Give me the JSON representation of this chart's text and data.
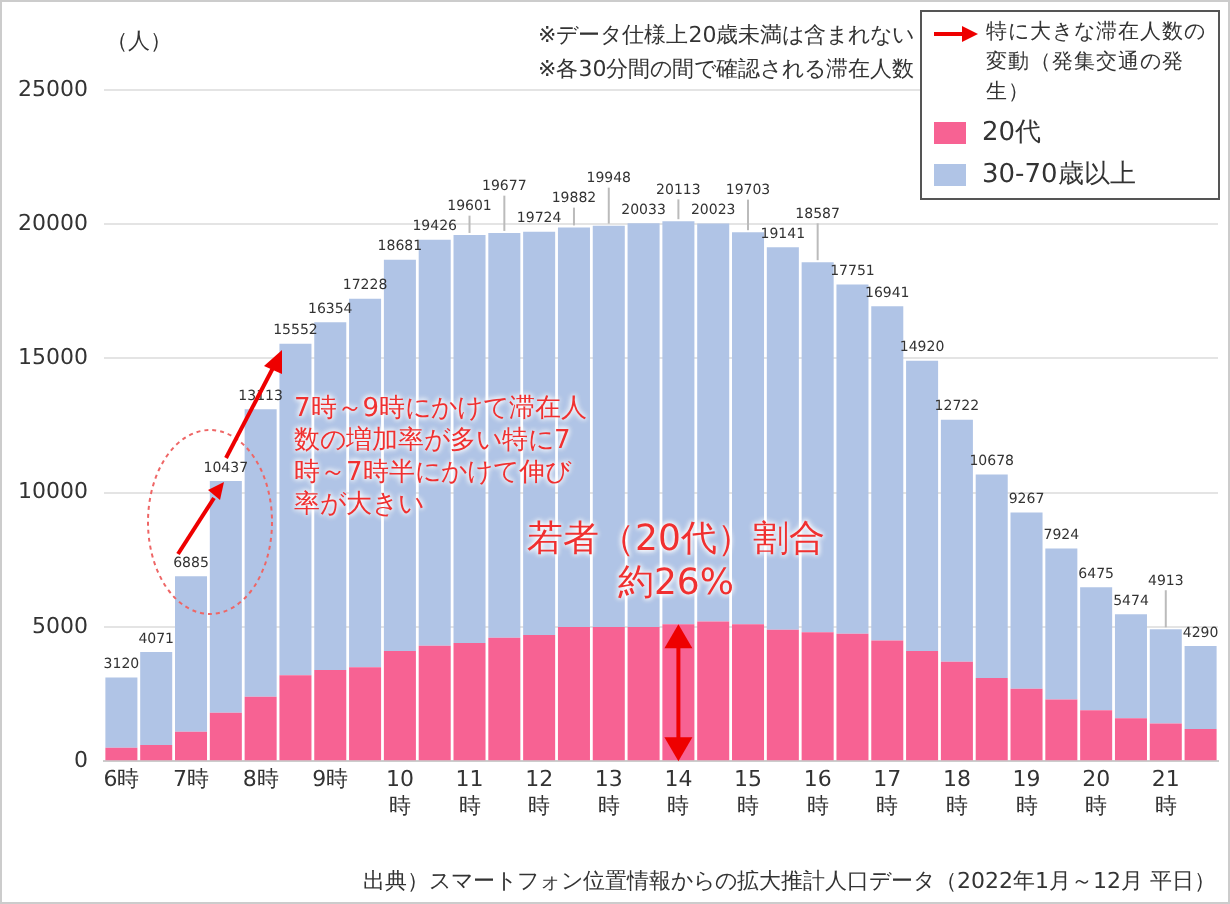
{
  "chart_data": {
    "type": "bar",
    "stacked": true,
    "ylabel": "（人）",
    "categories": [
      "6時",
      null,
      "7時",
      null,
      "8時",
      null,
      "9時",
      null,
      "10時",
      null,
      "11時",
      null,
      "12時",
      null,
      "13時",
      null,
      "14時",
      null,
      "15時",
      null,
      "16時",
      null,
      "17時",
      null,
      "18時",
      null,
      "19時",
      null,
      "20時",
      null,
      "21時",
      null
    ],
    "series": [
      {
        "name": "20代",
        "color": "#f76293",
        "values": [
          500,
          600,
          1100,
          1800,
          2400,
          3200,
          3400,
          3500,
          4100,
          4300,
          4400,
          4600,
          4700,
          5000,
          5000,
          5000,
          5100,
          5200,
          5100,
          4900,
          4800,
          4750,
          4500,
          4100,
          3700,
          3100,
          2700,
          2300,
          1900,
          1600,
          1400,
          1200
        ]
      },
      {
        "name": "30-70歳以上",
        "color": "#b0c4e6",
        "values": [
          2620,
          3471,
          5785,
          8637,
          10713,
          12352,
          12954,
          13728,
          14581,
          15126,
          15201,
          15077,
          15024,
          14882,
          14948,
          15033,
          15013,
          14823,
          14603,
          14241,
          13787,
          13001,
          12441,
          10820,
          9022,
          7578,
          6567,
          5624,
          4575,
          3874,
          3513,
          3090
        ]
      }
    ],
    "totals": [
      "3120",
      "4071",
      "6885",
      "10437",
      "13113",
      "15552",
      "16354",
      "17228",
      "18681",
      "19426",
      "19601",
      "19677",
      "19724",
      "19882",
      "19948",
      "20033",
      "20113",
      "20023",
      "19703",
      "19141",
      "18587",
      "17751",
      "16941",
      "14920",
      "12722",
      "10678",
      "9267",
      "7924",
      "6475",
      "5474",
      "4913",
      "4290"
    ],
    "ylim": [
      0,
      25000
    ],
    "yticks": [
      0,
      5000,
      10000,
      15000,
      20000,
      25000
    ],
    "grid": "y",
    "legend": "top right",
    "annotations": [
      "※データ仕様上20歳未満は含まれない",
      "※各30分間の間で確認される滞在人数",
      "特に大きな滞在人数の変動（発集交通の発生）",
      "7時～9時にかけて滞在人数の増加率が多い特に7時～7時半にかけて伸び率が大きい",
      {
        "text": "若者（20代）割合約26%",
        "x": "14時",
        "y": 5100
      },
      "出典）スマートフォン位置情報からの拡大推計人口データ（2022年1月～12月 平日）"
    ]
  }
}
